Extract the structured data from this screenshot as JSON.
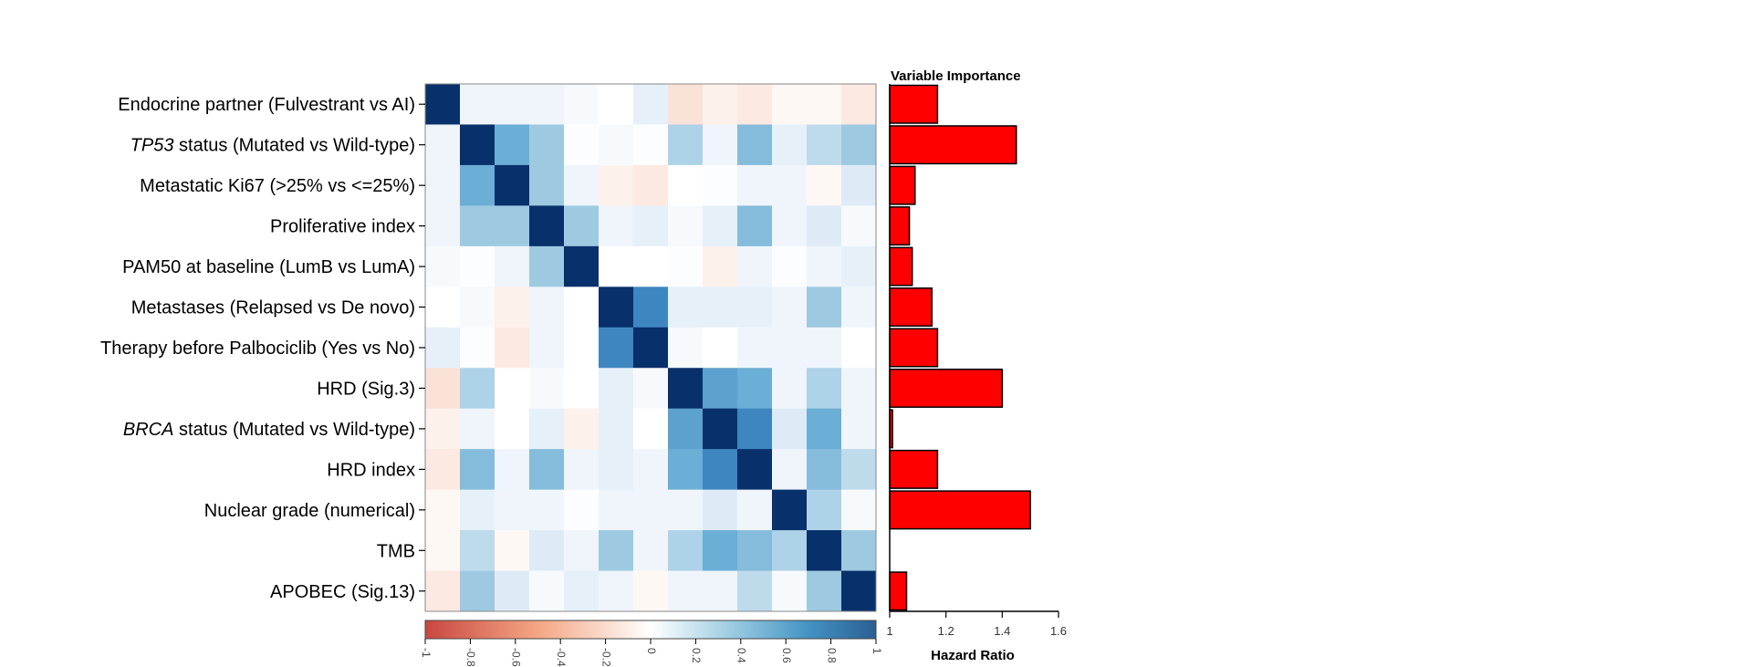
{
  "chart_data": [
    {
      "type": "heatmap",
      "title": "",
      "row_labels": [
        {
          "pre": "",
          "italic": "",
          "post": "Endocrine partner (Fulvestrant vs AI)"
        },
        {
          "pre": "",
          "italic": "TP53",
          "post": " status (Mutated vs Wild-type)"
        },
        {
          "pre": "",
          "italic": "",
          "post": "Metastatic Ki67 (>25% vs <=25%)"
        },
        {
          "pre": "",
          "italic": "",
          "post": "Proliferative index"
        },
        {
          "pre": "",
          "italic": "",
          "post": "PAM50 at baseline (LumB vs LumA)"
        },
        {
          "pre": "",
          "italic": "",
          "post": "Metastases (Relapsed vs De novo)"
        },
        {
          "pre": "",
          "italic": "",
          "post": "Therapy before Palbociclib (Yes vs No)"
        },
        {
          "pre": "",
          "italic": "",
          "post": "HRD (Sig.3)"
        },
        {
          "pre": "",
          "italic": "BRCA",
          "post": " status (Mutated vs Wild-type)"
        },
        {
          "pre": "",
          "italic": "",
          "post": "HRD index"
        },
        {
          "pre": "",
          "italic": "",
          "post": "Nuclear grade (numerical)"
        },
        {
          "pre": "",
          "italic": "",
          "post": "TMB"
        },
        {
          "pre": "",
          "italic": "",
          "post": "APOBEC (Sig.13)"
        }
      ],
      "matrix": [
        [
          1,
          0.1,
          0.1,
          0.1,
          0.05,
          0,
          0.15,
          -0.2,
          -0.1,
          -0.15,
          -0.05,
          -0.05,
          -0.15
        ],
        [
          0.1,
          1,
          0.6,
          0.4,
          0.02,
          0.05,
          0.02,
          0.35,
          0.1,
          0.5,
          0.15,
          0.3,
          0.4
        ],
        [
          0.1,
          0.6,
          1,
          0.4,
          0.1,
          -0.1,
          -0.15,
          0,
          0.02,
          0.1,
          0.1,
          -0.05,
          0.2
        ],
        [
          0.1,
          0.4,
          0.4,
          1,
          0.4,
          0.1,
          0.15,
          0.05,
          0.15,
          0.5,
          0.1,
          0.2,
          0.05
        ],
        [
          0.05,
          0.02,
          0.1,
          0.4,
          1,
          0,
          0,
          0.02,
          -0.1,
          0.1,
          0.02,
          0.1,
          0.15
        ],
        [
          0,
          0.05,
          -0.1,
          0.1,
          0,
          1,
          0.75,
          0.15,
          0.15,
          0.15,
          0.1,
          0.4,
          0.1
        ],
        [
          0.15,
          0.02,
          -0.15,
          0.1,
          0,
          0.75,
          1,
          0.05,
          0,
          0.1,
          0.1,
          0.1,
          0
        ],
        [
          -0.2,
          0.35,
          0,
          0.05,
          0,
          0.15,
          0.05,
          1,
          0.65,
          0.6,
          0.1,
          0.35,
          0.1
        ],
        [
          -0.1,
          0.1,
          0,
          0.15,
          -0.1,
          0.15,
          0,
          0.65,
          1,
          0.75,
          0.2,
          0.6,
          0.1
        ],
        [
          -0.15,
          0.5,
          0.1,
          0.5,
          0.1,
          0.15,
          0.1,
          0.6,
          0.75,
          1,
          0.1,
          0.5,
          0.3
        ],
        [
          -0.05,
          0.15,
          0.1,
          0.1,
          0.02,
          0.1,
          0.1,
          0.1,
          0.2,
          0.1,
          1,
          0.35,
          0.05
        ],
        [
          -0.05,
          0.3,
          -0.05,
          0.2,
          0.1,
          0.4,
          0.1,
          0.35,
          0.6,
          0.5,
          0.35,
          1,
          0.4
        ],
        [
          -0.15,
          0.4,
          0.2,
          0.05,
          0.15,
          0.1,
          -0.05,
          0.1,
          0.1,
          0.3,
          0.05,
          0.4,
          1
        ]
      ],
      "colorbar": {
        "range": [
          -1,
          1
        ],
        "ticks": [
          -1,
          -0.8,
          -0.6,
          -0.4,
          -0.2,
          0,
          0.2,
          0.4,
          0.6,
          0.8,
          1
        ],
        "tick_labels": [
          "-1",
          "-0.8",
          "-0.6",
          "-0.4",
          "-0.2",
          "0",
          "0.2",
          "0.4",
          "0.6",
          "0.8",
          "1"
        ],
        "colors": {
          "negative": "#c94741",
          "zero": "#ffffff",
          "positive": "#08306b"
        }
      }
    },
    {
      "type": "bar",
      "orientation": "horizontal",
      "title": "Variable Importance",
      "xlabel": "Hazard Ratio",
      "xlim": [
        1,
        1.6
      ],
      "ticks": [
        1,
        1.2,
        1.4,
        1.6
      ],
      "tick_labels": [
        "1",
        "1.2",
        "1.4",
        "1.6"
      ],
      "values": [
        1.17,
        1.45,
        1.09,
        1.07,
        1.08,
        1.15,
        1.17,
        1.4,
        1.01,
        1.17,
        1.5,
        1.0,
        1.06
      ],
      "bar_color": "#ff0000"
    }
  ]
}
